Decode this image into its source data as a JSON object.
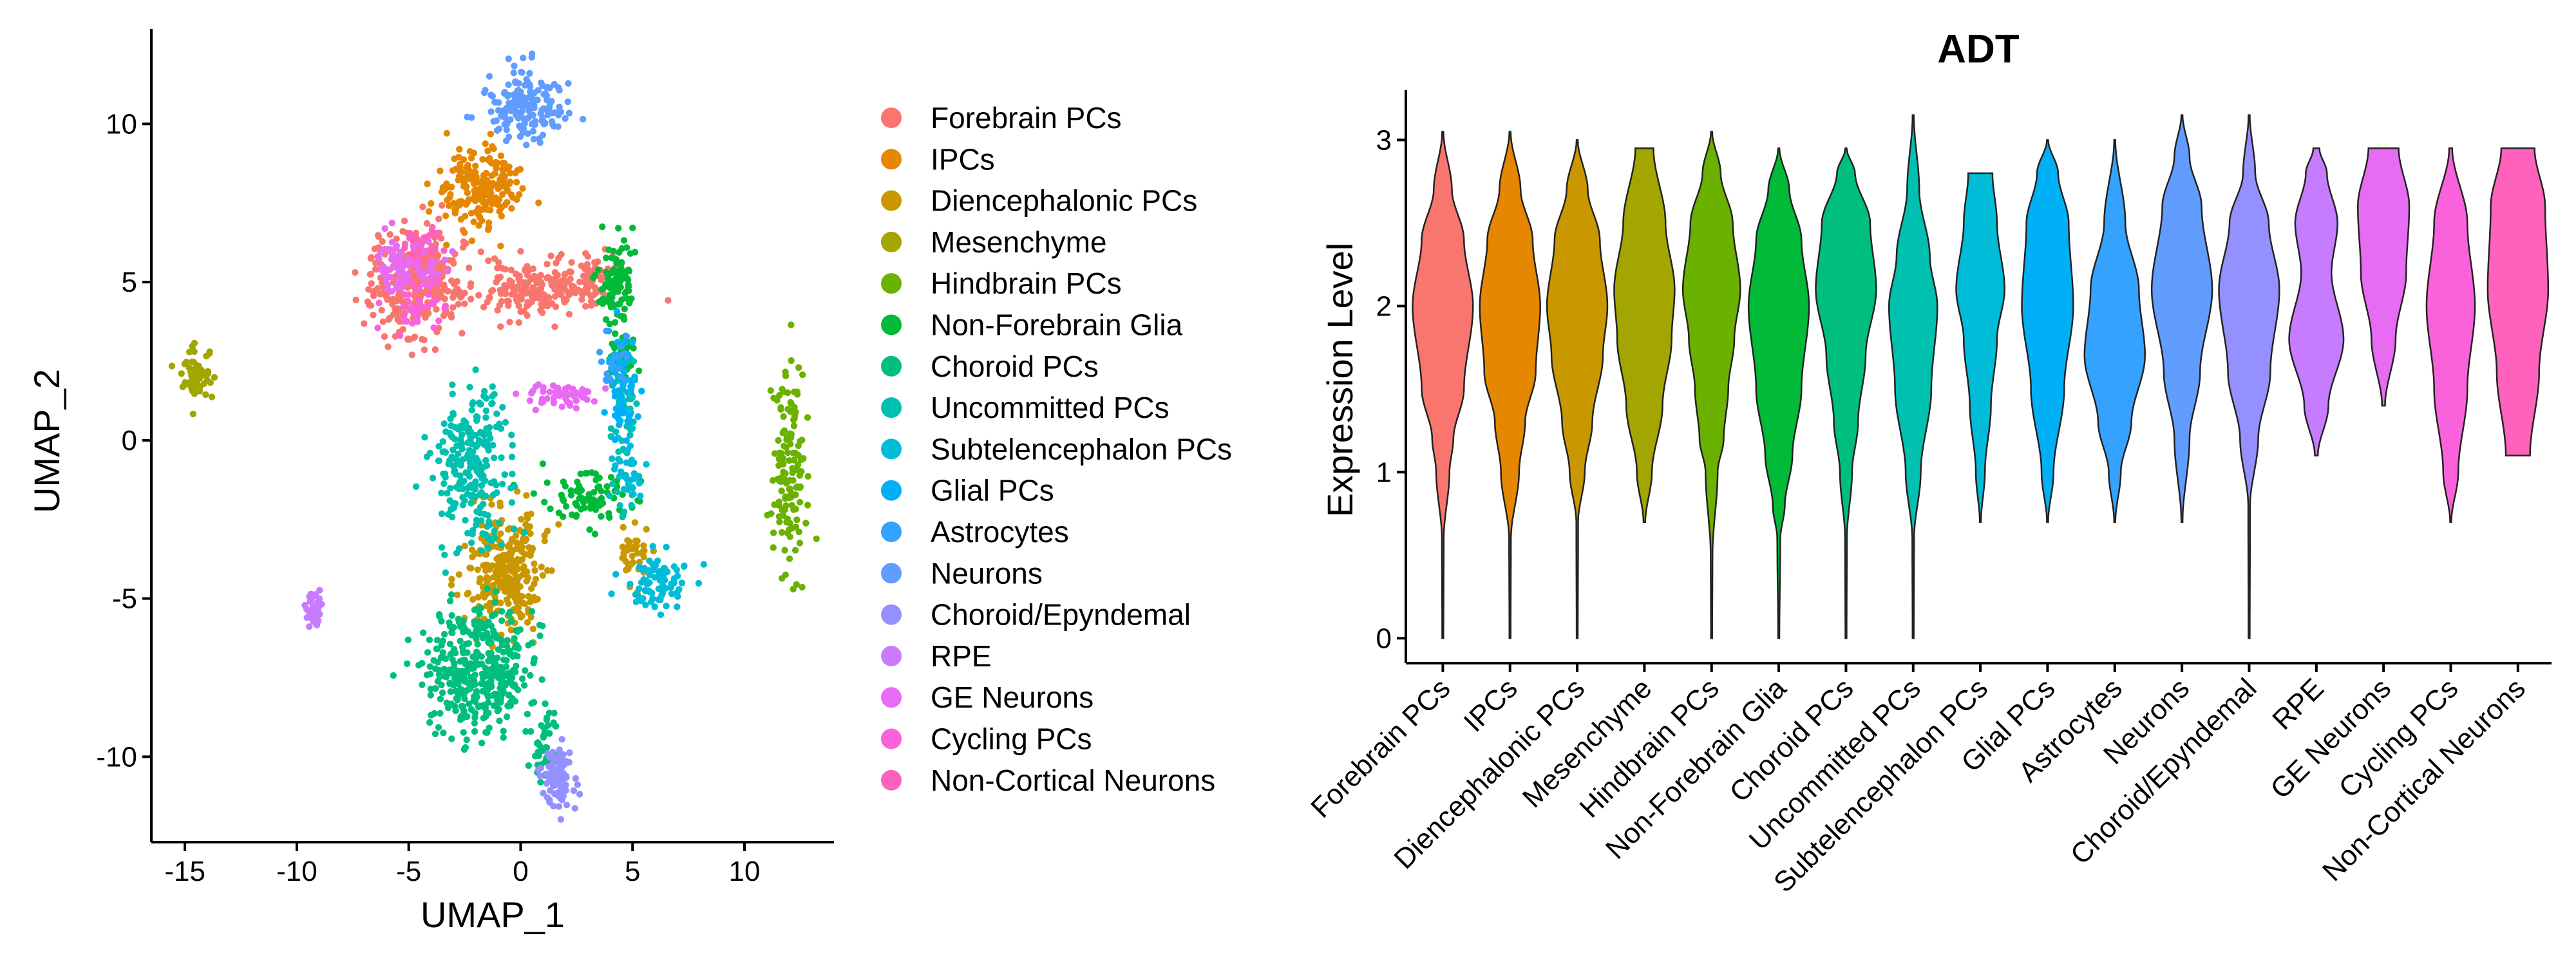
{
  "chart_data": [
    {
      "type": "scatter",
      "title": "",
      "xlabel": "UMAP_1",
      "ylabel": "UMAP_2",
      "xlim": [
        -16.5,
        14
      ],
      "ylim": [
        -12.7,
        13
      ],
      "xticks": [
        -15,
        -10,
        -5,
        0,
        5,
        10
      ],
      "yticks": [
        -10,
        -5,
        0,
        5,
        10
      ],
      "legend_position": "right",
      "grid": false,
      "series": [
        {
          "name": "Forebrain PCs",
          "color": "#F8766D",
          "clusters": [
            {
              "cx": -4.8,
              "cy": 5.0,
              "sx": 1.0,
              "sy": 0.8,
              "n": 340
            },
            {
              "cx": 0.5,
              "cy": 4.8,
              "sx": 1.5,
              "sy": 0.45,
              "n": 200
            },
            {
              "cx": 3.4,
              "cy": 5.2,
              "sx": 0.5,
              "sy": 0.35,
              "n": 50
            }
          ]
        },
        {
          "name": "IPCs",
          "color": "#E58700",
          "clusters": [
            {
              "cx": -1.8,
              "cy": 8.0,
              "sx": 0.9,
              "sy": 0.6,
              "n": 200
            }
          ]
        },
        {
          "name": "Diencephalonic PCs",
          "color": "#C99800",
          "clusters": [
            {
              "cx": -0.6,
              "cy": -4.2,
              "sx": 0.8,
              "sy": 1.0,
              "n": 280
            },
            {
              "cx": 5.0,
              "cy": -3.6,
              "sx": 0.35,
              "sy": 0.4,
              "n": 40
            }
          ]
        },
        {
          "name": "Mesenchyme",
          "color": "#A3A500",
          "clusters": [
            {
              "cx": -14.5,
              "cy": 2.0,
              "sx": 0.3,
              "sy": 0.35,
              "n": 70
            }
          ]
        },
        {
          "name": "Hindbrain PCs",
          "color": "#6BB100",
          "clusters": [
            {
              "cx": 12.0,
              "cy": -0.8,
              "sx": 0.35,
              "sy": 1.8,
              "n": 140
            }
          ]
        },
        {
          "name": "Non-Forebrain Glia",
          "color": "#00BA38",
          "clusters": [
            {
              "cx": 4.2,
              "cy": 5.0,
              "sx": 0.5,
              "sy": 0.6,
              "n": 90
            },
            {
              "cx": 3.0,
              "cy": -1.8,
              "sx": 1.1,
              "sy": 0.4,
              "n": 80
            },
            {
              "cx": 4.6,
              "cy": 2.8,
              "sx": 0.3,
              "sy": 0.7,
              "n": 40
            }
          ]
        },
        {
          "name": "Choroid PCs",
          "color": "#00BF7D",
          "clusters": [
            {
              "cx": -1.8,
              "cy": -7.3,
              "sx": 1.2,
              "sy": 1.0,
              "n": 380
            },
            {
              "cx": 1.0,
              "cy": -9.8,
              "sx": 0.3,
              "sy": 0.7,
              "n": 40
            }
          ]
        },
        {
          "name": "Uncommitted PCs",
          "color": "#00C0AF",
          "clusters": [
            {
              "cx": -2.2,
              "cy": -0.8,
              "sx": 0.9,
              "sy": 1.3,
              "n": 240
            },
            {
              "cx": 4.6,
              "cy": 0.6,
              "sx": 0.3,
              "sy": 1.2,
              "n": 60
            }
          ]
        },
        {
          "name": "Subtelencephalon PCs",
          "color": "#00BCD8",
          "clusters": [
            {
              "cx": 6.2,
              "cy": -4.4,
              "sx": 0.7,
              "sy": 0.4,
              "n": 80
            },
            {
              "cx": 4.8,
              "cy": -1.0,
              "sx": 0.3,
              "sy": 0.6,
              "n": 30
            }
          ]
        },
        {
          "name": "Glial PCs",
          "color": "#00B0F6",
          "clusters": [
            {
              "cx": 4.5,
              "cy": 1.5,
              "sx": 0.4,
              "sy": 0.8,
              "n": 60
            }
          ]
        },
        {
          "name": "Astrocytes",
          "color": "#35A2FF",
          "clusters": [
            {
              "cx": 4.2,
              "cy": 2.5,
              "sx": 0.3,
              "sy": 0.5,
              "n": 20
            }
          ]
        },
        {
          "name": "Neurons",
          "color": "#619CFF",
          "clusters": [
            {
              "cx": 0.3,
              "cy": 10.6,
              "sx": 0.8,
              "sy": 0.55,
              "n": 170
            }
          ]
        },
        {
          "name": "Choroid/Epyndemal",
          "color": "#9590FF",
          "clusters": [
            {
              "cx": 1.7,
              "cy": -10.6,
              "sx": 0.35,
              "sy": 0.5,
              "n": 90
            }
          ]
        },
        {
          "name": "RPE",
          "color": "#C77CFF",
          "clusters": [
            {
              "cx": -9.2,
              "cy": -5.3,
              "sx": 0.18,
              "sy": 0.3,
              "n": 35
            }
          ]
        },
        {
          "name": "GE Neurons",
          "color": "#E76BF3",
          "clusters": [
            {
              "cx": -5.0,
              "cy": 5.6,
              "sx": 0.7,
              "sy": 0.4,
              "n": 90
            },
            {
              "cx": 1.8,
              "cy": 1.4,
              "sx": 0.9,
              "sy": 0.18,
              "n": 50
            }
          ]
        },
        {
          "name": "Cycling PCs",
          "color": "#FA62DB",
          "clusters": [
            {
              "cx": -4.6,
              "cy": 4.2,
              "sx": 0.6,
              "sy": 0.4,
              "n": 40
            }
          ]
        },
        {
          "name": "Non-Cortical Neurons",
          "color": "#FF62BC",
          "clusters": [
            {
              "cx": -4.4,
              "cy": 6.2,
              "sx": 0.5,
              "sy": 0.3,
              "n": 30
            }
          ]
        }
      ]
    },
    {
      "type": "violin",
      "title": "ADT",
      "xlabel": "",
      "ylabel": "Expression Level",
      "ylim": [
        -0.15,
        3.3
      ],
      "yticks": [
        0,
        1,
        2,
        3
      ],
      "grid": false,
      "categories": [
        "Forebrain PCs",
        "IPCs",
        "Diencephalonic PCs",
        "Mesenchyme",
        "Hindbrain PCs",
        "Non-Forebrain Glia",
        "Choroid PCs",
        "Uncommitted PCs",
        "Subtelencephalon PCs",
        "Glial PCs",
        "Astrocytes",
        "Neurons",
        "Choroid/Epyndemal",
        "RPE",
        "GE Neurons",
        "Cycling PCs",
        "Non-Cortical Neurons"
      ],
      "colors": [
        "#F8766D",
        "#E58700",
        "#C99800",
        "#A3A500",
        "#6BB100",
        "#00BA38",
        "#00BF7D",
        "#00C0AF",
        "#00BCD8",
        "#00B0F6",
        "#35A2FF",
        "#619CFF",
        "#9590FF",
        "#C77CFF",
        "#E76BF3",
        "#FA62DB",
        "#FF62BC"
      ],
      "distributions": [
        {
          "min": 0.0,
          "max": 3.05,
          "profile": [
            [
              0.0,
              0.02
            ],
            [
              0.6,
              0.03
            ],
            [
              1.0,
              0.22
            ],
            [
              1.2,
              0.35
            ],
            [
              1.5,
              0.7
            ],
            [
              2.0,
              1.0
            ],
            [
              2.4,
              0.7
            ],
            [
              2.7,
              0.3
            ],
            [
              3.05,
              0.02
            ]
          ]
        },
        {
          "min": 0.0,
          "max": 3.05,
          "profile": [
            [
              0.0,
              0.02
            ],
            [
              0.6,
              0.03
            ],
            [
              1.0,
              0.3
            ],
            [
              1.3,
              0.5
            ],
            [
              1.6,
              0.85
            ],
            [
              2.0,
              1.0
            ],
            [
              2.4,
              0.75
            ],
            [
              2.7,
              0.35
            ],
            [
              3.05,
              0.02
            ]
          ]
        },
        {
          "min": 0.0,
          "max": 3.0,
          "profile": [
            [
              0.0,
              0.02
            ],
            [
              0.7,
              0.03
            ],
            [
              1.0,
              0.25
            ],
            [
              1.3,
              0.5
            ],
            [
              1.7,
              0.85
            ],
            [
              2.0,
              1.0
            ],
            [
              2.4,
              0.75
            ],
            [
              2.7,
              0.35
            ],
            [
              3.0,
              0.02
            ]
          ]
        },
        {
          "min": 0.7,
          "max": 2.95,
          "profile": [
            [
              0.7,
              0.03
            ],
            [
              1.0,
              0.25
            ],
            [
              1.4,
              0.6
            ],
            [
              1.8,
              0.9
            ],
            [
              2.1,
              1.0
            ],
            [
              2.5,
              0.7
            ],
            [
              2.95,
              0.3
            ]
          ]
        },
        {
          "min": 0.0,
          "max": 3.05,
          "profile": [
            [
              0.0,
              0.02
            ],
            [
              0.5,
              0.03
            ],
            [
              1.0,
              0.2
            ],
            [
              1.2,
              0.4
            ],
            [
              1.5,
              0.55
            ],
            [
              1.8,
              0.75
            ],
            [
              2.1,
              0.95
            ],
            [
              2.5,
              0.7
            ],
            [
              2.8,
              0.3
            ],
            [
              3.05,
              0.02
            ]
          ]
        },
        {
          "min": 0.0,
          "max": 2.95,
          "profile": [
            [
              0.0,
              0.02
            ],
            [
              0.6,
              0.05
            ],
            [
              0.8,
              0.2
            ],
            [
              1.1,
              0.45
            ],
            [
              1.5,
              0.75
            ],
            [
              2.0,
              1.0
            ],
            [
              2.4,
              0.75
            ],
            [
              2.7,
              0.35
            ],
            [
              2.95,
              0.02
            ]
          ]
        },
        {
          "min": 0.0,
          "max": 2.95,
          "profile": [
            [
              0.0,
              0.02
            ],
            [
              0.6,
              0.03
            ],
            [
              1.0,
              0.2
            ],
            [
              1.3,
              0.4
            ],
            [
              1.7,
              0.65
            ],
            [
              2.1,
              1.0
            ],
            [
              2.5,
              0.8
            ],
            [
              2.8,
              0.3
            ],
            [
              2.95,
              0.02
            ]
          ]
        },
        {
          "min": 0.0,
          "max": 3.15,
          "profile": [
            [
              0.0,
              0.02
            ],
            [
              0.6,
              0.03
            ],
            [
              1.0,
              0.25
            ],
            [
              1.5,
              0.6
            ],
            [
              2.0,
              0.8
            ],
            [
              2.3,
              0.55
            ],
            [
              2.7,
              0.2
            ],
            [
              3.15,
              0.02
            ]
          ]
        },
        {
          "min": 0.7,
          "max": 2.8,
          "profile": [
            [
              0.7,
              0.02
            ],
            [
              1.0,
              0.15
            ],
            [
              1.4,
              0.35
            ],
            [
              1.8,
              0.55
            ],
            [
              2.1,
              0.8
            ],
            [
              2.5,
              0.55
            ],
            [
              2.8,
              0.4
            ]
          ]
        },
        {
          "min": 0.7,
          "max": 3.0,
          "profile": [
            [
              0.7,
              0.02
            ],
            [
              1.0,
              0.2
            ],
            [
              1.5,
              0.55
            ],
            [
              2.0,
              0.85
            ],
            [
              2.5,
              0.7
            ],
            [
              2.8,
              0.35
            ],
            [
              3.0,
              0.02
            ]
          ]
        },
        {
          "min": 0.7,
          "max": 3.0,
          "profile": [
            [
              0.7,
              0.02
            ],
            [
              1.0,
              0.2
            ],
            [
              1.3,
              0.55
            ],
            [
              1.7,
              1.0
            ],
            [
              2.1,
              0.8
            ],
            [
              2.5,
              0.35
            ],
            [
              3.0,
              0.02
            ]
          ]
        },
        {
          "min": 0.7,
          "max": 3.15,
          "profile": [
            [
              0.7,
              0.02
            ],
            [
              1.2,
              0.25
            ],
            [
              1.6,
              0.6
            ],
            [
              2.1,
              1.0
            ],
            [
              2.6,
              0.65
            ],
            [
              2.9,
              0.25
            ],
            [
              3.15,
              0.02
            ]
          ]
        },
        {
          "min": 0.0,
          "max": 3.15,
          "profile": [
            [
              0.0,
              0.02
            ],
            [
              0.8,
              0.03
            ],
            [
              1.2,
              0.3
            ],
            [
              1.6,
              0.7
            ],
            [
              2.1,
              1.0
            ],
            [
              2.5,
              0.65
            ],
            [
              2.8,
              0.2
            ],
            [
              3.15,
              0.02
            ]
          ]
        },
        {
          "min": 1.1,
          "max": 2.95,
          "profile": [
            [
              1.1,
              0.05
            ],
            [
              1.4,
              0.4
            ],
            [
              1.8,
              0.9
            ],
            [
              2.2,
              0.5
            ],
            [
              2.5,
              0.7
            ],
            [
              2.8,
              0.35
            ],
            [
              2.95,
              0.1
            ]
          ]
        },
        {
          "min": 1.4,
          "max": 2.95,
          "profile": [
            [
              1.4,
              0.05
            ],
            [
              1.8,
              0.4
            ],
            [
              2.2,
              0.75
            ],
            [
              2.6,
              0.85
            ],
            [
              2.95,
              0.5
            ]
          ]
        },
        {
          "min": 0.7,
          "max": 2.95,
          "profile": [
            [
              0.7,
              0.02
            ],
            [
              1.0,
              0.25
            ],
            [
              1.5,
              0.55
            ],
            [
              2.0,
              0.8
            ],
            [
              2.5,
              0.55
            ],
            [
              2.95,
              0.05
            ]
          ]
        },
        {
          "min": 1.1,
          "max": 2.95,
          "profile": [
            [
              1.1,
              0.4
            ],
            [
              1.6,
              0.7
            ],
            [
              2.1,
              1.0
            ],
            [
              2.6,
              0.9
            ],
            [
              2.95,
              0.55
            ]
          ]
        }
      ]
    }
  ]
}
